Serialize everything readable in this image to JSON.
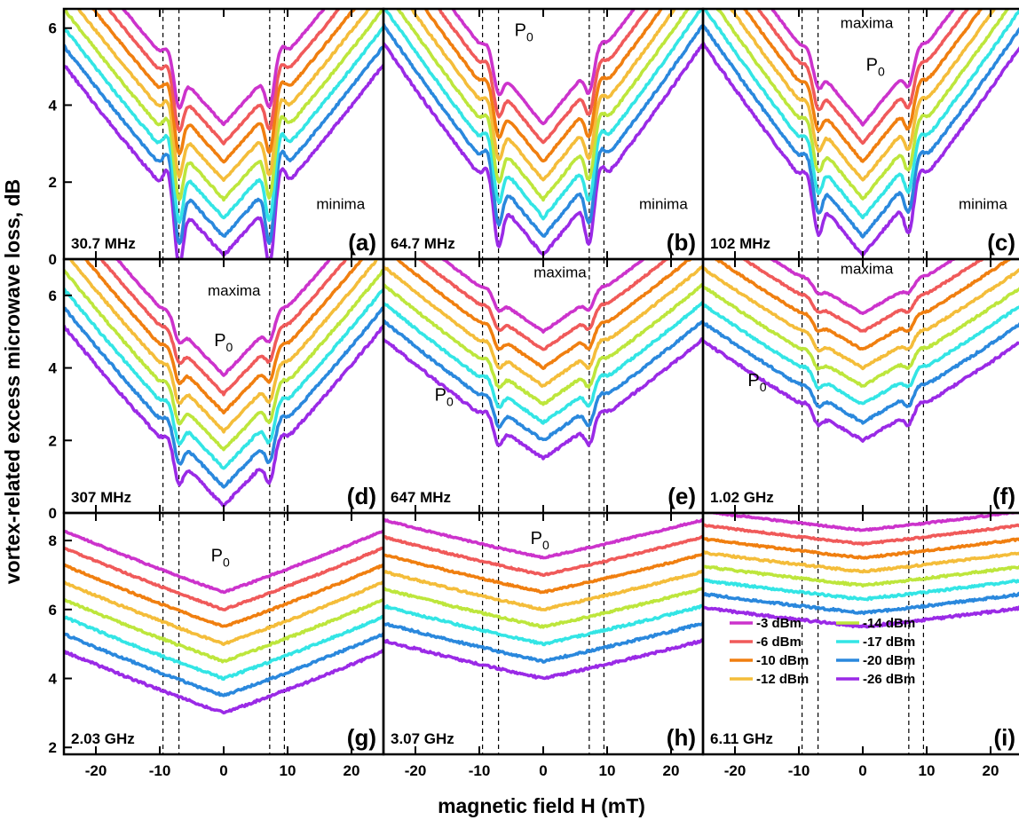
{
  "figure": {
    "ylabel": "vortex-related excess microwave loss, dB",
    "xlabel": "magnetic field H (mT)"
  },
  "chart_data": {
    "type": "line",
    "xlabel": "magnetic field H (mT)",
    "ylabel": "vortex-related excess microwave loss, dB",
    "xlim": [
      -25,
      25
    ],
    "x_ticks": [
      "-20",
      "-10",
      "0",
      "10",
      "20"
    ],
    "legend": {
      "placement": "lower-right of panel (i)",
      "entries": [
        {
          "label": "-3 dBm",
          "color": "#cc33cc"
        },
        {
          "label": "-6 dBm",
          "color": "#f05a5a"
        },
        {
          "label": "-10 dBm",
          "color": "#f07f10"
        },
        {
          "label": "-12 dBm",
          "color": "#f4bd3a"
        },
        {
          "label": "-14 dBm",
          "color": "#bde63c"
        },
        {
          "label": "-17 dBm",
          "color": "#33e5e5"
        },
        {
          "label": "-20 dBm",
          "color": "#2a88dd"
        },
        {
          "label": "-26 dBm",
          "color": "#9a2ae6"
        }
      ]
    },
    "series_names": [
      "-3 dBm",
      "-6 dBm",
      "-10 dBm",
      "-12 dBm",
      "-14 dBm",
      "-17 dBm",
      "-20 dBm",
      "-26 dBm"
    ],
    "dashed_lines_x": [
      -9.5,
      -7,
      7.2,
      9.5
    ],
    "panels": [
      {
        "id": "a",
        "label": "(a)",
        "freq": "30.7 MHz",
        "ylim": [
          0,
          6.5
        ],
        "y_ticks": [
          "0",
          "2",
          "4",
          "6"
        ],
        "center_top": 3.5,
        "center_bottom": 0.1,
        "slope": 0.18,
        "dips": [
          {
            "x": -7,
            "depth": 1.6
          },
          {
            "x": 7.2,
            "depth": 1.6
          }
        ],
        "annotations": [
          {
            "text": "minima",
            "x": 14.5,
            "y": 1.3
          }
        ]
      },
      {
        "id": "b",
        "label": "(b)",
        "freq": "64.7 MHz",
        "ylim": [
          0,
          6.5
        ],
        "y_ticks": [],
        "center_top": 3.5,
        "center_bottom": 0.1,
        "slope": 0.2,
        "dips": [
          {
            "x": -7,
            "depth": 1.2
          },
          {
            "x": 7.2,
            "depth": 1.2
          }
        ],
        "annotations": [
          {
            "text": "P0",
            "x": -4.5,
            "y": 5.8
          },
          {
            "text": "minima",
            "x": 15,
            "y": 1.3
          }
        ]
      },
      {
        "id": "c",
        "label": "(c)",
        "freq": "102 MHz",
        "ylim": [
          0,
          6.5
        ],
        "y_ticks": [],
        "center_top": 3.5,
        "center_bottom": 0.1,
        "slope": 0.2,
        "dips": [
          {
            "x": -7,
            "depth": 0.9
          },
          {
            "x": 7.2,
            "depth": 0.9
          }
        ],
        "annotations": [
          {
            "text": "maxima",
            "x": -3.5,
            "y": 6.0
          },
          {
            "text": "P0",
            "x": 0.5,
            "y": 4.9
          },
          {
            "text": "minima",
            "x": 15,
            "y": 1.3
          }
        ]
      },
      {
        "id": "d",
        "label": "(d)",
        "freq": "307 MHz",
        "ylim": [
          0,
          7
        ],
        "y_ticks": [
          "0",
          "2",
          "4",
          "6"
        ],
        "center_top": 3.8,
        "center_bottom": 0.2,
        "slope": 0.18,
        "dips": [
          {
            "x": -7,
            "depth": 0.7
          },
          {
            "x": 7.2,
            "depth": 0.7
          }
        ],
        "annotations": [
          {
            "text": "maxima",
            "x": -2.5,
            "y": 6.0
          },
          {
            "text": "P0",
            "x": -1.5,
            "y": 4.6
          }
        ]
      },
      {
        "id": "e",
        "label": "(e)",
        "freq": "647 MHz",
        "ylim": [
          0,
          7
        ],
        "y_ticks": [],
        "center_top": 5.0,
        "center_bottom": 1.5,
        "slope": 0.12,
        "dips": [
          {
            "x": -7,
            "depth": 0.5
          },
          {
            "x": 7.2,
            "depth": 0.5
          }
        ],
        "annotations": [
          {
            "text": "maxima",
            "x": -1.5,
            "y": 6.5
          },
          {
            "text": "P0",
            "x": -17,
            "y": 3.1
          }
        ]
      },
      {
        "id": "f",
        "label": "(f)",
        "freq": "1.02 GHz",
        "ylim": [
          0,
          7
        ],
        "y_ticks": [],
        "center_top": 5.5,
        "center_bottom": 2.0,
        "slope": 0.1,
        "dips": [
          {
            "x": -7,
            "depth": 0.3
          },
          {
            "x": 7.2,
            "depth": 0.3
          }
        ],
        "annotations": [
          {
            "text": "maxima",
            "x": -3.5,
            "y": 6.6
          },
          {
            "text": "P0",
            "x": -18,
            "y": 3.5
          }
        ]
      },
      {
        "id": "g",
        "label": "(g)",
        "freq": "2.03 GHz",
        "ylim": [
          1.8,
          8.8
        ],
        "y_ticks": [
          "2",
          "4",
          "6",
          "8"
        ],
        "center_top": 6.5,
        "center_bottom": 3.0,
        "slope": 0.065,
        "dips": [],
        "annotations": [
          {
            "text": "P0",
            "x": -2,
            "y": 7.4
          }
        ]
      },
      {
        "id": "h",
        "label": "(h)",
        "freq": "3.07 GHz",
        "ylim": [
          1.8,
          8.8
        ],
        "y_ticks": [],
        "center_top": 7.5,
        "center_bottom": 4.0,
        "slope": 0.04,
        "dips": [],
        "annotations": [
          {
            "text": "P0",
            "x": -2,
            "y": 7.9
          }
        ]
      },
      {
        "id": "i",
        "label": "(i)",
        "freq": "6.11 GHz",
        "ylim": [
          1.8,
          8.8
        ],
        "y_ticks": [],
        "center_top": 8.3,
        "center_bottom": 5.5,
        "slope": 0.02,
        "dips": [],
        "annotations": []
      }
    ]
  }
}
